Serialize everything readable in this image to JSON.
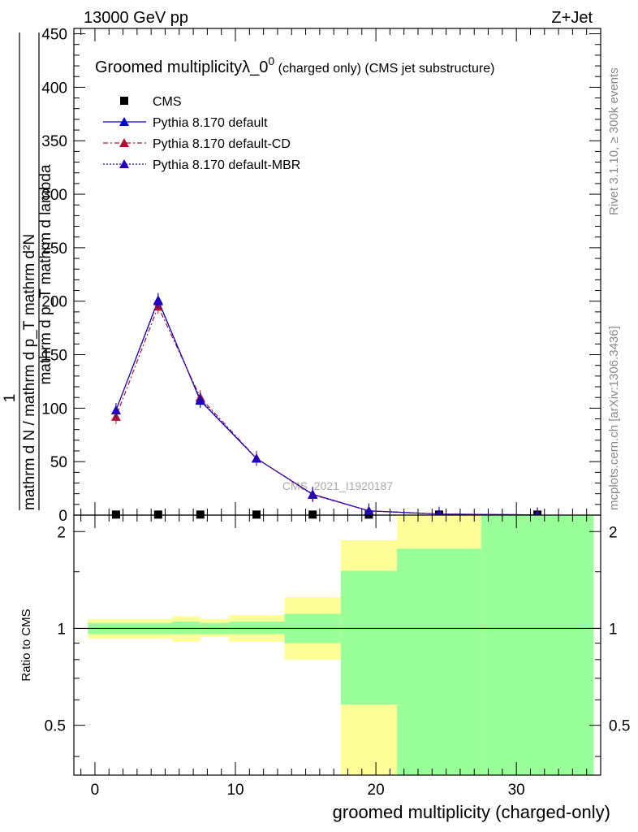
{
  "header": {
    "energy": "13000 GeV pp",
    "process": "Z+Jet"
  },
  "side_labels": {
    "rivet": "Rivet 3.1.10, ≥ 300k events",
    "mcplots": "mcplots.cern.ch [arXiv:1306.3436]"
  },
  "chart_data": [
    {
      "type": "line",
      "title_main": "Groomed multiplicityλ_0",
      "title_sup": "0",
      "title_tail": " (charged only) (CMS jet substructure)",
      "watermark": "CMS_2021_I1920187",
      "ylabel_numerator": "mathrm d²N",
      "ylabel_denominator": "mathrm d p_T mathrm d lambda",
      "ylabel_prefix_numerator": "1",
      "ylabel_prefix_denominator": "mathrm d N / mathrm d p_T",
      "xlim": [
        -1.5,
        36
      ],
      "ylim": [
        0,
        455
      ],
      "y_ticks": [
        0,
        50,
        100,
        150,
        200,
        250,
        300,
        350,
        400,
        450
      ],
      "y_tick_labels": [
        "0",
        "50",
        "100",
        "150",
        "200",
        "250",
        "300",
        "350",
        "400",
        "450"
      ],
      "legend_position": "top-left",
      "series": [
        {
          "name": "CMS",
          "color": "#000000",
          "marker": "square",
          "x": [
            1.5,
            4.5,
            7.5,
            11.5,
            15.5,
            19.5,
            24.5,
            31.5
          ],
          "y": [
            0.5,
            0.5,
            0.5,
            0.5,
            0.5,
            0.5,
            0.5,
            0.5
          ]
        },
        {
          "name": "Pythia 8.170 default",
          "color": "#0000cc",
          "marker": "triangle",
          "dash": "solid",
          "x": [
            1.5,
            4.5,
            7.5,
            11.5,
            15.5,
            19.5,
            24.5,
            31.5
          ],
          "y": [
            98,
            201,
            107,
            53,
            19.5,
            4,
            1,
            0.2
          ]
        },
        {
          "name": "Pythia 8.170 default-CD",
          "color": "#aa1133",
          "marker": "triangle",
          "dash": "dashdot",
          "x": [
            1.5,
            4.5,
            7.5,
            11.5,
            15.5,
            19.5,
            24.5,
            31.5
          ],
          "y": [
            92,
            195,
            110,
            53,
            19,
            4,
            1,
            0.2
          ]
        },
        {
          "name": "Pythia 8.170 default-MBR",
          "color": "#2200bb",
          "marker": "triangle",
          "dash": "dotted",
          "x": [
            1.5,
            4.5,
            7.5,
            11.5,
            15.5,
            19.5,
            24.5,
            31.5
          ],
          "y": [
            98,
            200,
            108,
            53,
            19.5,
            4,
            1,
            0.2
          ]
        }
      ]
    },
    {
      "type": "area",
      "ylabel": "Ratio to CMS",
      "xlabel": "groomed multiplicity (charged-only)",
      "xlim": [
        -1.5,
        36
      ],
      "ylim": [
        0.35,
        2.25
      ],
      "x_ticks": [
        0,
        10,
        20,
        30
      ],
      "x_tick_labels": [
        "0",
        "10",
        "20",
        "30"
      ],
      "y_ticks": [
        0.5,
        1,
        2
      ],
      "y_tick_labels": [
        "0.5",
        "1",
        "2"
      ],
      "reference_line": 1,
      "bands": {
        "outer_color": "#ffff99",
        "inner_color": "#99ff99",
        "bins": [
          {
            "x_low": -0.5,
            "x_high": 5.5,
            "outer": [
              0.93,
              1.07
            ],
            "inner": [
              0.96,
              1.04
            ]
          },
          {
            "x_low": 5.5,
            "x_high": 7.5,
            "outer": [
              0.91,
              1.09
            ],
            "inner": [
              0.96,
              1.05
            ]
          },
          {
            "x_low": 7.5,
            "x_high": 9.5,
            "outer": [
              0.94,
              1.07
            ],
            "inner": [
              0.96,
              1.04
            ]
          },
          {
            "x_low": 9.5,
            "x_high": 13.5,
            "outer": [
              0.91,
              1.1
            ],
            "inner": [
              0.96,
              1.05
            ]
          },
          {
            "x_low": 13.5,
            "x_high": 17.5,
            "outer": [
              0.8,
              1.25
            ],
            "inner": [
              0.9,
              1.11
            ]
          },
          {
            "x_low": 17.5,
            "x_high": 21.5,
            "outer": [
              0.35,
              1.88
            ],
            "inner": [
              0.58,
              1.51
            ]
          },
          {
            "x_low": 21.5,
            "x_high": 27.5,
            "outer": [
              0.35,
              2.25
            ],
            "inner": [
              0.35,
              1.77
            ]
          },
          {
            "x_low": 27.5,
            "x_high": 35.5,
            "outer": [
              0.35,
              2.25
            ],
            "inner": [
              0.35,
              2.25
            ]
          }
        ]
      }
    }
  ]
}
